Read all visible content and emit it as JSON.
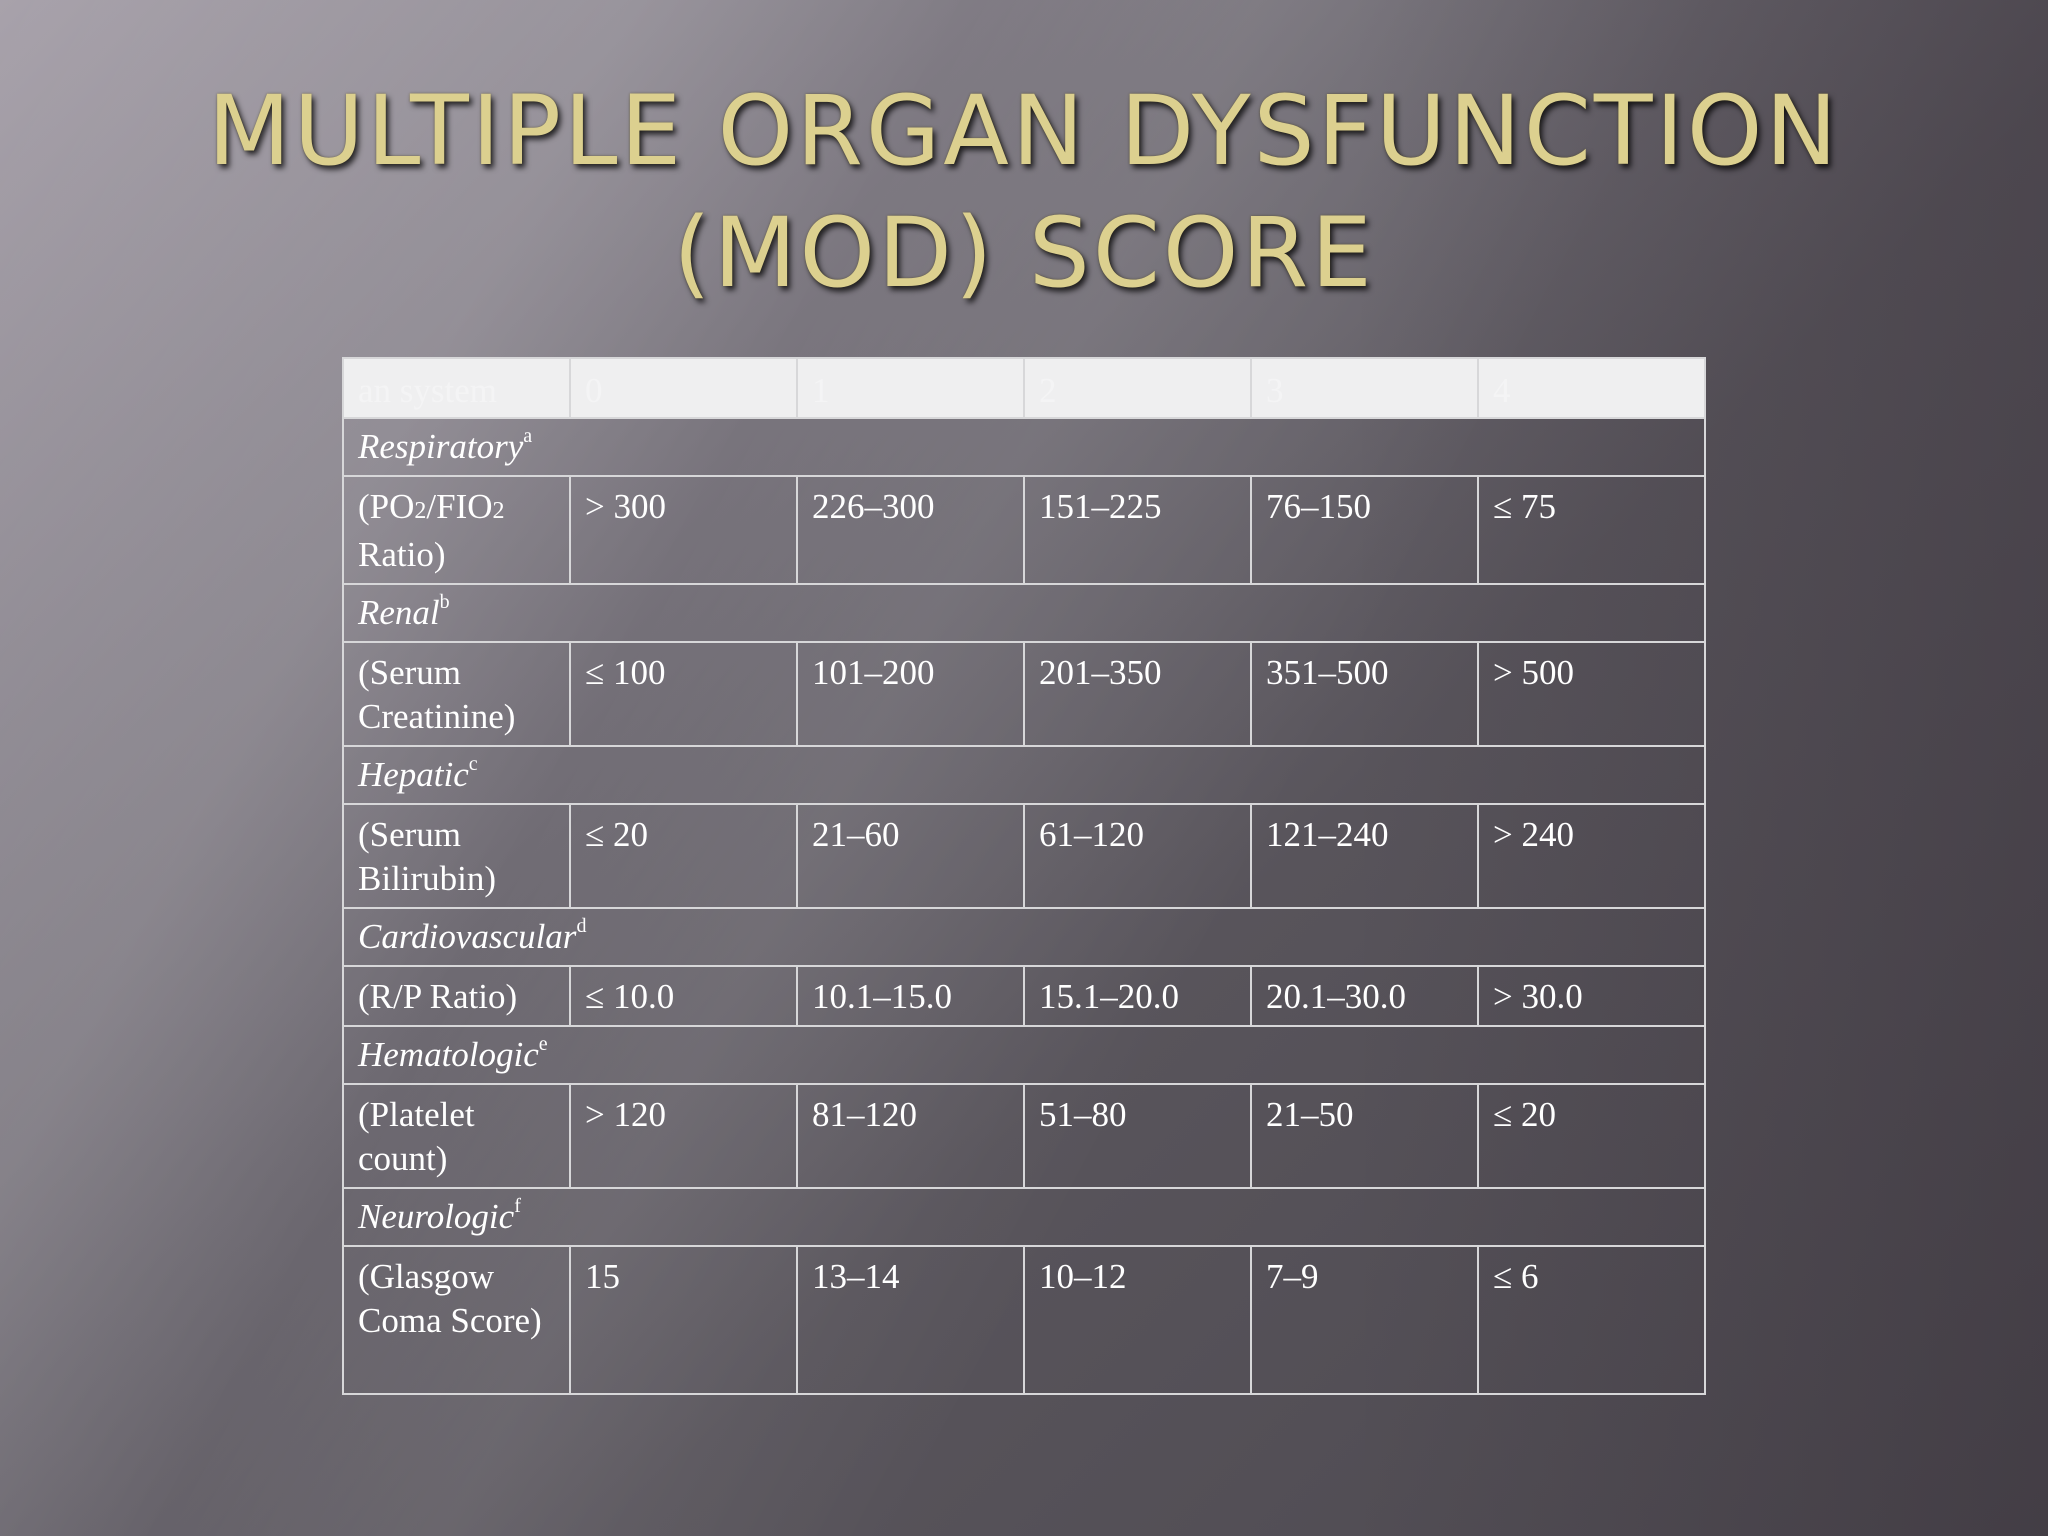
{
  "slide": {
    "title_line1": "MULTIPLE ORGAN DYSFUNCTION",
    "title_line2": "(MOD) SCORE"
  },
  "table": {
    "headers": [
      "an system",
      "0",
      "1",
      "2",
      "3",
      "4"
    ],
    "systems": [
      {
        "name": "Respiratory",
        "note": "a",
        "measure": "(PO2/FIO2 Ratio)",
        "values": [
          "> 300",
          "226–300",
          "151–225",
          "76–150",
          "≤ 75"
        ]
      },
      {
        "name": "Renal",
        "note": "b",
        "measure": "(Serum Creatinine)",
        "values": [
          "≤ 100",
          "101–200",
          "201–350",
          "351–500",
          "> 500"
        ]
      },
      {
        "name": "Hepatic",
        "note": "c",
        "measure": "(Serum Bilirubin)",
        "values": [
          "≤ 20",
          "21–60",
          "61–120",
          "121–240",
          "> 240"
        ]
      },
      {
        "name": "Cardiovascular",
        "note": "d",
        "measure": "(R/P Ratio)",
        "values": [
          "≤ 10.0",
          "10.1–15.0",
          "15.1–20.0",
          "20.1–30.0",
          "> 30.0"
        ]
      },
      {
        "name": "Hematologic",
        "note": "e",
        "measure": "(Platelet count)",
        "values": [
          "> 120",
          "81–120",
          "51–80",
          "21–50",
          "≤ 20"
        ]
      },
      {
        "name": "Neurologic",
        "note": "f",
        "measure": "(Glasgow Coma Score)",
        "values": [
          "15",
          "13–14",
          "10–12",
          "7–9",
          "≤ 6"
        ]
      }
    ]
  }
}
